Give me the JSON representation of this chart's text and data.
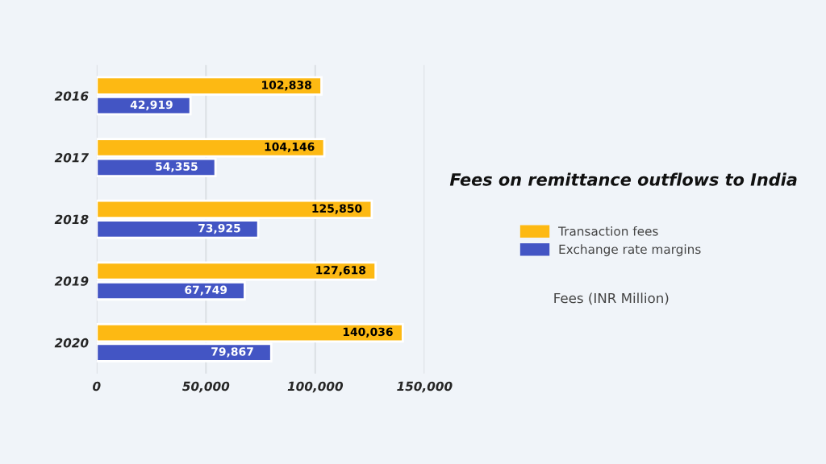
{
  "chart_data": {
    "type": "bar",
    "orientation": "horizontal",
    "title": "Fees on remittance outflows to India",
    "annotations": [
      "Fees (INR Million)"
    ],
    "categories": [
      "2016",
      "2017",
      "2018",
      "2019",
      "2020"
    ],
    "series": [
      {
        "name": "Transaction fees",
        "color": "#fdb913",
        "values": [
          102838,
          104146,
          125850,
          127618,
          140036
        ],
        "value_labels": [
          "102,838",
          "104,146",
          "125,850",
          "127,618",
          "140,036"
        ]
      },
      {
        "name": "Exchange rate margins",
        "color": "#4355c4",
        "values": [
          42919,
          54355,
          73925,
          67749,
          79867
        ],
        "value_labels": [
          "42,919",
          "54,355",
          "73,925",
          "67,749",
          "79,867"
        ]
      }
    ],
    "xlim": [
      0,
      150000
    ],
    "xticks": [
      {
        "value": 0,
        "label": "0"
      },
      {
        "value": 50000,
        "label": "50,000"
      },
      {
        "value": 100000,
        "label": "100,000"
      },
      {
        "value": 150000,
        "label": "150,000"
      }
    ],
    "grid": "x",
    "legend": "right"
  }
}
